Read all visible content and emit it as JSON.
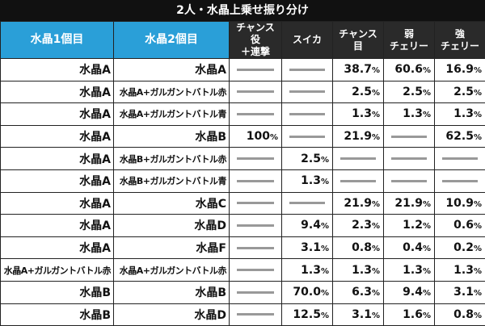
{
  "title": "2人・水晶上乗せ振り分け",
  "table": {
    "header": [
      "水晶1個目",
      "水晶2個目",
      "チャンス役\n＋連撃",
      "スイカ",
      "チャンス\n目",
      "弱\nチェリー",
      "強\nチェリー"
    ],
    "rows": [
      [
        "水晶A",
        "水晶A",
        null,
        null,
        "38.7%",
        "60.6%",
        "16.9%"
      ],
      [
        "水晶A",
        "水晶A+ガルガントバトル赤",
        null,
        null,
        "2.5%",
        "2.5%",
        "2.5%"
      ],
      [
        "水晶A",
        "水晶A+ガルガントバトル青",
        null,
        null,
        "1.3%",
        "1.3%",
        "1.3%"
      ],
      [
        "水晶A",
        "水晶B",
        "100%",
        null,
        "21.9%",
        null,
        "62.5%"
      ],
      [
        "水晶A",
        "水晶B+ガルガントバトル赤",
        null,
        "2.5%",
        null,
        null,
        null
      ],
      [
        "水晶A",
        "水晶B+ガルガントバトル青",
        null,
        "1.3%",
        null,
        null,
        null
      ],
      [
        "水晶A",
        "水晶C",
        null,
        null,
        "21.9%",
        "21.9%",
        "10.9%"
      ],
      [
        "水晶A",
        "水晶D",
        null,
        "9.4%",
        "2.3%",
        "1.2%",
        "0.6%"
      ],
      [
        "水晶A",
        "水晶F",
        null,
        "3.1%",
        "0.8%",
        "0.4%",
        "0.2%"
      ],
      [
        "水晶A+ガルガントバトル赤",
        "水晶A+ガルガントバトル赤",
        null,
        "1.3%",
        "1.3%",
        "1.3%",
        "1.3%"
      ],
      [
        "水晶B",
        "水晶B",
        null,
        "70.0%",
        "6.3%",
        "9.4%",
        "3.1%"
      ],
      [
        "水晶B",
        "水晶D",
        null,
        "12.5%",
        "3.1%",
        "1.6%",
        "0.8%"
      ]
    ]
  }
}
